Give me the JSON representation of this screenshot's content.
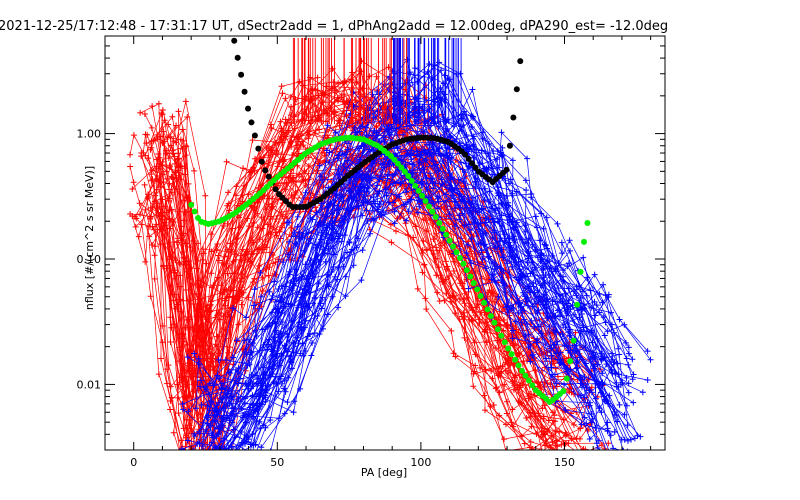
{
  "chart_data": {
    "type": "line",
    "title": "2021-12-25/17:12:48 - 17:31:17 UT, dSectr2add = 1, dPhAng2add = 12.00deg, dPA290_est= -12.0deg",
    "xlabel": "PA [deg]",
    "ylabel": "nflux [#/(cm^2 s sr MeV)]",
    "xlim": [
      -10,
      185
    ],
    "ylim": [
      0.003,
      6.0
    ],
    "yscale": "log",
    "grid": false,
    "x_ticks": [
      0,
      50,
      100,
      150
    ],
    "x_tick_labels": [
      "0",
      "50",
      "100",
      "150"
    ],
    "y_ticks": [
      0.01,
      0.1,
      1.0
    ],
    "y_tick_labels": [
      "0.01",
      "0.10",
      "1.00"
    ],
    "colors": {
      "red_series": "#ff0000",
      "blue_series": "#0000ff",
      "black_fit": "#000000",
      "green_fit": "#00ee00"
    },
    "series": [
      {
        "color": "#000000",
        "style": "thick-dotted",
        "x": [
          35,
          40,
          45,
          50,
          55,
          60,
          65,
          70,
          75,
          80,
          85,
          90,
          95,
          100,
          105,
          110,
          115,
          120,
          125,
          130,
          135
        ],
        "y": [
          5.5,
          1.5,
          0.55,
          0.34,
          0.26,
          0.26,
          0.3,
          0.37,
          0.47,
          0.58,
          0.7,
          0.82,
          0.9,
          0.93,
          0.92,
          0.85,
          0.7,
          0.5,
          0.41,
          0.52,
          4.5
        ]
      },
      {
        "color": "#00ee00",
        "style": "thick-dotted",
        "x": [
          20,
          23,
          26,
          30,
          35,
          40,
          45,
          50,
          55,
          60,
          65,
          70,
          75,
          80,
          85,
          90,
          95,
          100,
          105,
          110,
          115,
          120,
          125,
          130,
          135,
          140,
          145,
          150,
          153,
          155,
          157,
          159
        ],
        "y": [
          0.27,
          0.2,
          0.19,
          0.2,
          0.23,
          0.28,
          0.35,
          0.45,
          0.56,
          0.7,
          0.82,
          0.9,
          0.93,
          0.9,
          0.8,
          0.65,
          0.48,
          0.33,
          0.22,
          0.14,
          0.09,
          0.055,
          0.033,
          0.02,
          0.013,
          0.009,
          0.0072,
          0.009,
          0.02,
          0.06,
          0.15,
          0.25
        ]
      }
    ],
    "scatter_sets": {
      "red": {
        "color": "#ff0000",
        "x": [
          7,
          10,
          12,
          15,
          18,
          20,
          22,
          25,
          28,
          30,
          35,
          40,
          45,
          50,
          55,
          60,
          65,
          70,
          75,
          80,
          85,
          90,
          95,
          100,
          105,
          110,
          115,
          120,
          125,
          130,
          135,
          140,
          145,
          150,
          155
        ],
        "y": [
          0.4,
          0.35,
          0.5,
          0.15,
          0.03,
          0.01,
          0.006,
          0.005,
          0.02,
          0.05,
          0.08,
          0.15,
          0.25,
          0.4,
          0.55,
          0.7,
          0.8,
          0.85,
          0.9,
          0.9,
          0.85,
          0.75,
          0.6,
          0.4,
          0.25,
          0.15,
          0.08,
          0.05,
          0.03,
          0.02,
          0.012,
          0.01,
          0.008,
          0.007,
          0.006
        ]
      },
      "blue": {
        "color": "#0000ff",
        "x": [
          25,
          30,
          35,
          40,
          45,
          50,
          55,
          60,
          65,
          70,
          75,
          80,
          85,
          90,
          95,
          100,
          105,
          110,
          115,
          120,
          125,
          130,
          135,
          140,
          145,
          150,
          155,
          160,
          165,
          170
        ],
        "y": [
          0.004,
          0.004,
          0.006,
          0.01,
          0.015,
          0.02,
          0.035,
          0.06,
          0.12,
          0.25,
          0.4,
          0.6,
          0.75,
          0.85,
          0.9,
          0.9,
          0.85,
          0.75,
          0.55,
          0.38,
          0.25,
          0.15,
          0.1,
          0.07,
          0.05,
          0.035,
          0.025,
          0.018,
          0.012,
          0.008
        ]
      }
    }
  }
}
